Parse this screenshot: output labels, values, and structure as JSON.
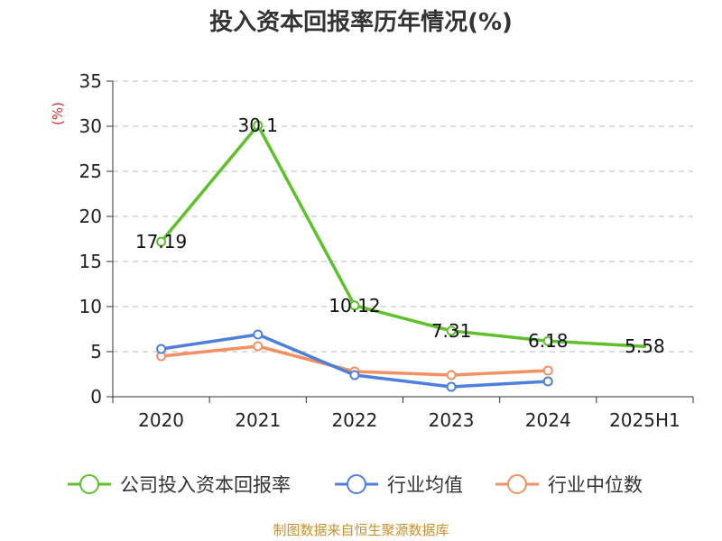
{
  "colors": {
    "company": "#5ec12c",
    "industry_avg": "#4f7fdc",
    "industry_median": "#f39062",
    "unit": "#d03030",
    "source": "#c8912f",
    "grid": "#bbbbbb",
    "axis": "#333333"
  },
  "source": "制图数据来自恒生聚源数据库",
  "chart_data": {
    "type": "line",
    "title": "投入资本回报率历年情况(%)",
    "unit_label": "(%)",
    "categories": [
      "2020",
      "2021",
      "2022",
      "2023",
      "2024",
      "2025H1"
    ],
    "ylim": [
      0,
      35
    ],
    "y_ticks": [
      0,
      5,
      10,
      15,
      20,
      25,
      30,
      35
    ],
    "grid": "horizontal-dashed",
    "legend_position": "bottom",
    "series": [
      {
        "name": "公司投入资本回报率",
        "values": [
          17.19,
          30.1,
          10.12,
          7.31,
          6.18,
          5.58
        ],
        "data_labels": [
          "17.19",
          "30.1",
          "10.12",
          "7.31",
          "6.18",
          "5.58"
        ],
        "color_key": "company",
        "markers": [
          true,
          true,
          true,
          true,
          true,
          false
        ]
      },
      {
        "name": "行业均值",
        "values": [
          5.3,
          6.9,
          2.4,
          1.1,
          1.7,
          null
        ],
        "color_key": "industry_avg",
        "markers": [
          true,
          true,
          true,
          true,
          true,
          false
        ]
      },
      {
        "name": "行业中位数",
        "values": [
          4.5,
          5.6,
          2.8,
          2.4,
          2.9,
          null
        ],
        "color_key": "industry_median",
        "markers": [
          true,
          true,
          true,
          true,
          true,
          false
        ]
      }
    ]
  }
}
